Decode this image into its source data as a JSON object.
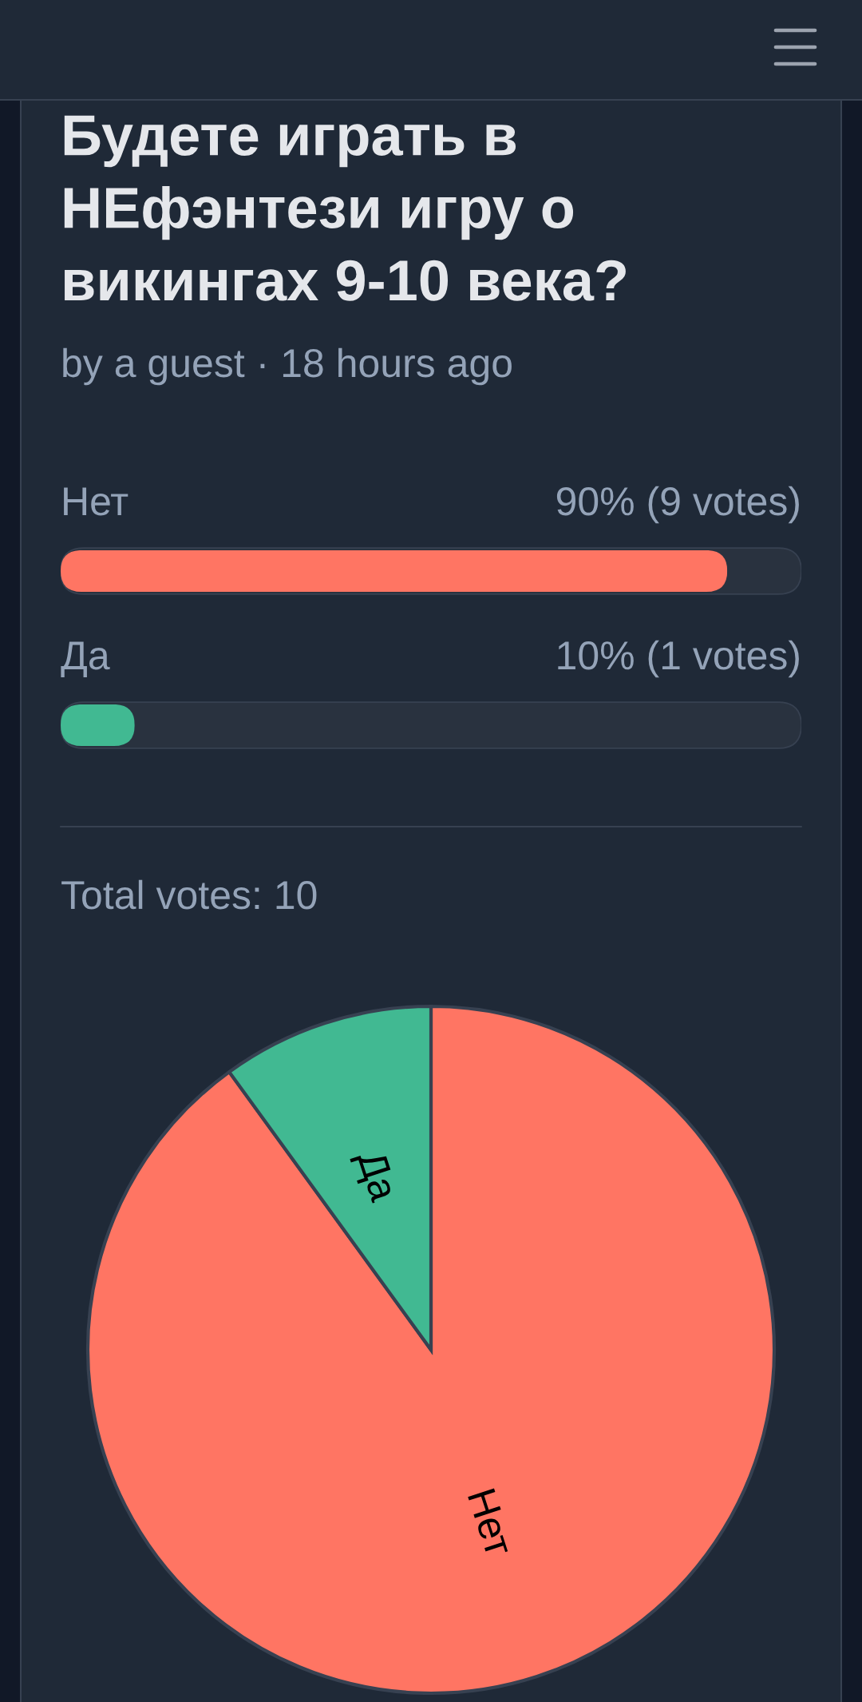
{
  "chart_data": [
    {
      "type": "bar",
      "orientation": "horizontal",
      "title": "Будете играть в НЕфэнтези игру о викингах 9-10 века?",
      "subtitle": "by a guest · 18 hours ago",
      "categories": [
        "Нет",
        "Да"
      ],
      "values": [
        90,
        10
      ],
      "colors": [
        "#ff7563",
        "#41b992"
      ],
      "value_labels": [
        "90% (9 votes)",
        "10% (1 votes)"
      ],
      "xlim": [
        0,
        100
      ],
      "tick_labels": "y",
      "annotations": [
        "Total votes: 10"
      ]
    },
    {
      "type": "pie",
      "categories": [
        "Нет",
        "Да"
      ],
      "values": [
        90,
        10
      ],
      "colors": [
        "#ff7563",
        "#41b992"
      ]
    }
  ]
}
